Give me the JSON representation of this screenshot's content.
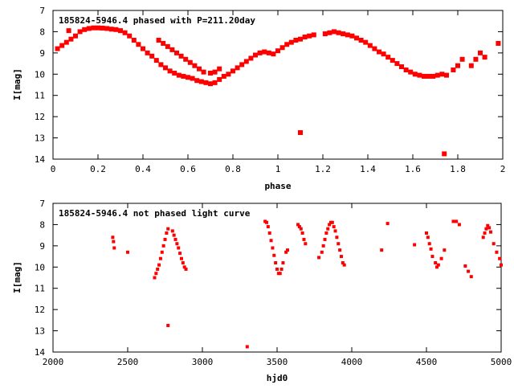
{
  "chart_data": [
    {
      "type": "scatter",
      "title": "185824-5946.4 phased with P=211.20day",
      "xlabel": "phase",
      "ylabel": "I[mag]",
      "xlim": [
        0,
        2
      ],
      "ylim": [
        14,
        7
      ],
      "x_ticks": [
        0,
        0.2,
        0.4,
        0.6,
        0.8,
        1,
        1.2,
        1.4,
        1.6,
        1.8,
        2
      ],
      "x_tick_labels": [
        "0",
        "0.2",
        "0.4",
        "0.6",
        "0.8",
        "1",
        "1.2",
        "1.4",
        "1.6",
        "1.8",
        "2"
      ],
      "y_ticks": [
        7,
        8,
        9,
        10,
        11,
        12,
        13,
        14
      ],
      "y_tick_labels": [
        "7",
        "8",
        "9",
        "10",
        "11",
        "12",
        "13",
        "14"
      ],
      "marker_color": "#ff0000",
      "grid": false,
      "series": [
        {
          "x": [
            0.02,
            0.04,
            0.06,
            0.08,
            0.1,
            0.12,
            0.14,
            0.16,
            0.18,
            0.2,
            0.22,
            0.24,
            0.26,
            0.28,
            0.3,
            0.32,
            0.34,
            0.36,
            0.38,
            0.4,
            0.42,
            0.44,
            0.46,
            0.48,
            0.5,
            0.52,
            0.54,
            0.56,
            0.58,
            0.6,
            0.62,
            0.64,
            0.66,
            0.68,
            0.7,
            0.72,
            0.74,
            0.07,
            0.47,
            0.49,
            0.51,
            0.53,
            0.55,
            0.57,
            0.59,
            0.61,
            0.63,
            0.65,
            0.67,
            0.7,
            0.72,
            0.74,
            0.76,
            0.78,
            0.8,
            0.82,
            0.84,
            0.86,
            0.88,
            0.9,
            0.92,
            0.94,
            0.96,
            0.98,
            1.0,
            1.02,
            1.04,
            1.06,
            1.08,
            1.1,
            1.12,
            1.14,
            1.16,
            1.21,
            1.23,
            1.25,
            1.27,
            1.29,
            1.31,
            1.33,
            1.35,
            1.37,
            1.39,
            1.41,
            1.43,
            1.45,
            1.47,
            1.49,
            1.51,
            1.53,
            1.55,
            1.57,
            1.59,
            1.61,
            1.63,
            1.65,
            1.67,
            1.69,
            1.71,
            1.73,
            1.75,
            1.78,
            1.8,
            1.82,
            1.86,
            1.88,
            1.9,
            1.92,
            1.98,
            1.1,
            1.74
          ],
          "y": [
            8.8,
            8.65,
            8.5,
            8.35,
            8.2,
            8.0,
            7.9,
            7.85,
            7.82,
            7.82,
            7.83,
            7.85,
            7.88,
            7.9,
            7.95,
            8.05,
            8.2,
            8.4,
            8.6,
            8.8,
            9.0,
            9.15,
            9.35,
            9.55,
            9.7,
            9.85,
            9.95,
            10.05,
            10.1,
            10.15,
            10.2,
            10.3,
            10.35,
            10.4,
            10.45,
            10.4,
            10.25,
            7.95,
            8.4,
            8.55,
            8.7,
            8.85,
            9.0,
            9.15,
            9.3,
            9.45,
            9.6,
            9.75,
            9.9,
            9.95,
            9.9,
            9.75,
            10.1,
            10.0,
            9.85,
            9.7,
            9.55,
            9.4,
            9.25,
            9.1,
            9.0,
            8.95,
            9.0,
            9.05,
            8.9,
            8.75,
            8.6,
            8.5,
            8.4,
            8.35,
            8.25,
            8.2,
            8.15,
            8.1,
            8.05,
            8.0,
            8.05,
            8.1,
            8.15,
            8.2,
            8.3,
            8.4,
            8.5,
            8.65,
            8.8,
            8.95,
            9.05,
            9.2,
            9.35,
            9.5,
            9.65,
            9.8,
            9.9,
            10.0,
            10.05,
            10.1,
            10.1,
            10.1,
            10.05,
            10.0,
            10.05,
            9.8,
            9.6,
            9.3,
            9.6,
            9.3,
            9.0,
            9.2,
            8.55,
            12.75,
            13.75
          ]
        }
      ]
    },
    {
      "type": "scatter",
      "title": "185824-5946.4 not phased light curve",
      "xlabel": "hjd0",
      "ylabel": "I[mag]",
      "xlim": [
        2000,
        5000
      ],
      "ylim": [
        14,
        7
      ],
      "x_ticks": [
        2000,
        2500,
        3000,
        3500,
        4000,
        4500,
        5000
      ],
      "x_tick_labels": [
        "2000",
        "2500",
        "3000",
        "3500",
        "4000",
        "4500",
        "5000"
      ],
      "y_ticks": [
        7,
        8,
        9,
        10,
        11,
        12,
        13,
        14
      ],
      "y_tick_labels": [
        "7",
        "8",
        "9",
        "10",
        "11",
        "12",
        "13",
        "14"
      ],
      "marker_color": "#ff0000",
      "grid": false,
      "series": [
        {
          "x": [
            2400,
            2405,
            2410,
            2500,
            2680,
            2690,
            2700,
            2710,
            2720,
            2730,
            2740,
            2750,
            2760,
            2770,
            2800,
            2810,
            2820,
            2830,
            2840,
            2850,
            2860,
            2870,
            2880,
            2890,
            2770,
            3300,
            3420,
            3430,
            3440,
            3450,
            3460,
            3470,
            3480,
            3490,
            3500,
            3510,
            3520,
            3530,
            3540,
            3560,
            3570,
            3640,
            3650,
            3660,
            3670,
            3680,
            3690,
            3780,
            3800,
            3810,
            3820,
            3830,
            3840,
            3850,
            3860,
            3870,
            3880,
            3890,
            3900,
            3910,
            3920,
            3930,
            3940,
            3950,
            4200,
            4240,
            4420,
            4500,
            4510,
            4520,
            4530,
            4540,
            4560,
            4570,
            4580,
            4600,
            4620,
            4680,
            4700,
            4720,
            4760,
            4780,
            4800,
            4880,
            4890,
            4900,
            4910,
            4920,
            4930,
            4950,
            4970,
            4990,
            5000
          ],
          "y": [
            8.6,
            8.8,
            9.1,
            9.3,
            10.5,
            10.3,
            10.1,
            9.9,
            9.6,
            9.3,
            9.0,
            8.7,
            8.4,
            8.2,
            8.3,
            8.5,
            8.7,
            8.9,
            9.1,
            9.35,
            9.6,
            9.8,
            10.0,
            10.1,
            12.75,
            13.75,
            7.85,
            7.9,
            8.1,
            8.4,
            8.75,
            9.1,
            9.45,
            9.8,
            10.1,
            10.3,
            10.3,
            10.1,
            9.8,
            9.3,
            9.2,
            8.0,
            8.1,
            8.2,
            8.4,
            8.7,
            8.9,
            9.55,
            9.3,
            9.0,
            8.7,
            8.4,
            8.2,
            8.0,
            7.9,
            7.9,
            8.1,
            8.3,
            8.6,
            8.9,
            9.2,
            9.5,
            9.8,
            9.9,
            9.2,
            7.95,
            8.95,
            8.4,
            8.6,
            8.9,
            9.15,
            9.5,
            9.8,
            10.0,
            9.9,
            9.6,
            9.2,
            7.85,
            7.85,
            8.0,
            9.95,
            10.2,
            10.45,
            8.6,
            8.4,
            8.2,
            8.05,
            8.15,
            8.35,
            8.9,
            9.3,
            9.6,
            9.9
          ]
        }
      ]
    }
  ]
}
